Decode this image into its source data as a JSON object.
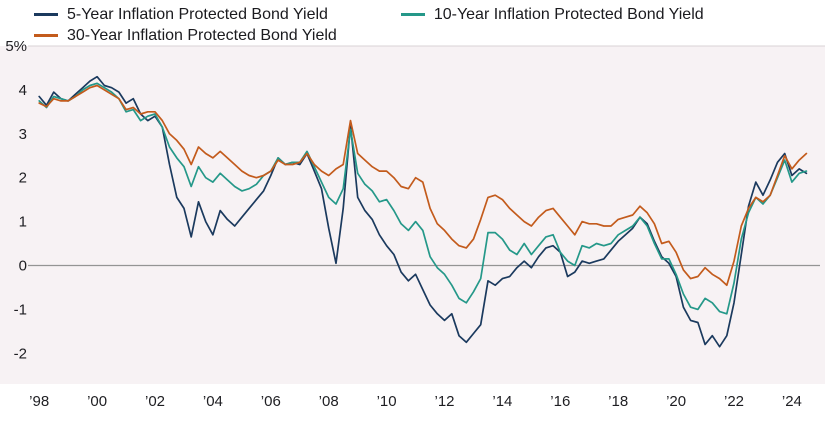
{
  "chart_data": {
    "type": "line",
    "title": "",
    "xlabel": "",
    "ylabel": "",
    "legend_position": "top-left",
    "grid": false,
    "x_unit": "year",
    "sampling": "quarterly",
    "x_start": 1998.0,
    "x_step": 0.25,
    "x_axis": {
      "min": 1997.75,
      "max": 2024.9,
      "ticks": [
        {
          "value": 1998,
          "label": "’98"
        },
        {
          "value": 2000,
          "label": "’00"
        },
        {
          "value": 2002,
          "label": "’02"
        },
        {
          "value": 2004,
          "label": "’04"
        },
        {
          "value": 2006,
          "label": "’06"
        },
        {
          "value": 2008,
          "label": "’08"
        },
        {
          "value": 2010,
          "label": "’10"
        },
        {
          "value": 2012,
          "label": "’12"
        },
        {
          "value": 2014,
          "label": "’14"
        },
        {
          "value": 2016,
          "label": "’16"
        },
        {
          "value": 2018,
          "label": "’18"
        },
        {
          "value": 2020,
          "label": "’20"
        },
        {
          "value": 2022,
          "label": "’22"
        },
        {
          "value": 2024,
          "label": "’24"
        }
      ]
    },
    "y_axis": {
      "min": -2.7,
      "max": 5,
      "unit": "%",
      "ticks": [
        {
          "value": 5,
          "label": "5%"
        },
        {
          "value": 4,
          "label": "4"
        },
        {
          "value": 3,
          "label": "3"
        },
        {
          "value": 2,
          "label": "2"
        },
        {
          "value": 1,
          "label": "1"
        },
        {
          "value": 0,
          "label": "0"
        },
        {
          "value": -1,
          "label": "-1"
        },
        {
          "value": -2,
          "label": "-2"
        }
      ]
    },
    "colors": {
      "plot_bg": "#f7f2f4",
      "zero_line": "#949494",
      "top_rule": "#dad3d6",
      "text": "#1e1e22"
    },
    "series": [
      {
        "id": "5-year",
        "name": "5-Year Inflation Protected Bond Yield",
        "color": "#1b3a5e",
        "values": [
          3.85,
          3.65,
          3.95,
          3.8,
          3.75,
          3.9,
          4.05,
          4.2,
          4.3,
          4.1,
          4.05,
          3.95,
          3.7,
          3.8,
          3.45,
          3.3,
          3.4,
          3.15,
          2.3,
          1.55,
          1.3,
          0.65,
          1.45,
          1.0,
          0.7,
          1.25,
          1.05,
          0.9,
          1.1,
          1.3,
          1.5,
          1.7,
          2.05,
          2.45,
          2.3,
          2.35,
          2.3,
          2.55,
          2.15,
          1.75,
          0.85,
          0.05,
          1.3,
          3.2,
          1.55,
          1.25,
          1.05,
          0.7,
          0.45,
          0.25,
          -0.15,
          -0.35,
          -0.2,
          -0.55,
          -0.9,
          -1.1,
          -1.25,
          -1.1,
          -1.6,
          -1.75,
          -1.55,
          -1.35,
          -0.35,
          -0.45,
          -0.3,
          -0.25,
          -0.05,
          0.1,
          -0.05,
          0.2,
          0.4,
          0.45,
          0.3,
          -0.25,
          -0.15,
          0.1,
          0.05,
          0.1,
          0.15,
          0.35,
          0.55,
          0.7,
          0.85,
          1.1,
          0.95,
          0.55,
          0.2,
          0.05,
          -0.25,
          -0.95,
          -1.25,
          -1.3,
          -1.8,
          -1.6,
          -1.85,
          -1.6,
          -0.85,
          0.25,
          1.35,
          1.9,
          1.6,
          1.95,
          2.35,
          2.55,
          2.05,
          2.2,
          2.1
        ]
      },
      {
        "id": "10-year",
        "name": "10-Year Inflation Protected Bond Yield",
        "color": "#259889",
        "values": [
          3.75,
          3.6,
          3.85,
          3.8,
          3.75,
          3.85,
          4.0,
          4.1,
          4.15,
          4.05,
          3.95,
          3.8,
          3.5,
          3.55,
          3.3,
          3.4,
          3.45,
          3.15,
          2.7,
          2.45,
          2.25,
          1.8,
          2.25,
          2.0,
          1.9,
          2.1,
          1.95,
          1.8,
          1.7,
          1.75,
          1.85,
          2.05,
          2.15,
          2.45,
          2.3,
          2.35,
          2.35,
          2.6,
          2.25,
          1.9,
          1.55,
          1.4,
          1.75,
          3.1,
          2.1,
          1.85,
          1.7,
          1.45,
          1.5,
          1.25,
          0.95,
          0.8,
          1.0,
          0.8,
          0.2,
          -0.05,
          -0.2,
          -0.45,
          -0.75,
          -0.85,
          -0.6,
          -0.3,
          0.75,
          0.75,
          0.6,
          0.35,
          0.25,
          0.5,
          0.25,
          0.45,
          0.65,
          0.7,
          0.3,
          0.1,
          0.0,
          0.45,
          0.4,
          0.5,
          0.45,
          0.5,
          0.7,
          0.8,
          0.9,
          1.1,
          0.9,
          0.5,
          0.15,
          0.15,
          -0.2,
          -0.65,
          -0.95,
          -1.0,
          -0.75,
          -0.85,
          -1.05,
          -1.1,
          -0.4,
          0.6,
          1.2,
          1.55,
          1.4,
          1.6,
          2.0,
          2.4,
          1.9,
          2.1,
          2.15
        ]
      },
      {
        "id": "30-year",
        "name": "30-Year Inflation Protected Bond Yield",
        "color": "#c35b1c",
        "values": [
          3.7,
          3.62,
          3.8,
          3.75,
          3.75,
          3.85,
          3.95,
          4.05,
          4.1,
          4.0,
          3.9,
          3.8,
          3.55,
          3.6,
          3.45,
          3.5,
          3.5,
          3.3,
          3.0,
          2.85,
          2.65,
          2.3,
          2.7,
          2.55,
          2.45,
          2.6,
          2.45,
          2.3,
          2.15,
          2.05,
          2.0,
          2.05,
          2.15,
          2.4,
          2.3,
          2.3,
          2.35,
          2.55,
          2.3,
          2.15,
          2.05,
          2.2,
          2.3,
          3.3,
          2.55,
          2.4,
          2.25,
          2.15,
          2.15,
          2.0,
          1.8,
          1.75,
          2.0,
          1.9,
          1.3,
          0.95,
          0.8,
          0.6,
          0.45,
          0.4,
          0.6,
          1.05,
          1.55,
          1.6,
          1.5,
          1.3,
          1.15,
          1.0,
          0.9,
          1.1,
          1.25,
          1.3,
          1.1,
          0.9,
          0.7,
          1.0,
          0.95,
          0.95,
          0.9,
          0.9,
          1.05,
          1.1,
          1.15,
          1.35,
          1.2,
          0.95,
          0.5,
          0.55,
          0.3,
          -0.1,
          -0.3,
          -0.25,
          -0.05,
          -0.2,
          -0.3,
          -0.45,
          0.1,
          0.9,
          1.3,
          1.55,
          1.45,
          1.6,
          2.05,
          2.5,
          2.2,
          2.4,
          2.55
        ]
      }
    ]
  }
}
